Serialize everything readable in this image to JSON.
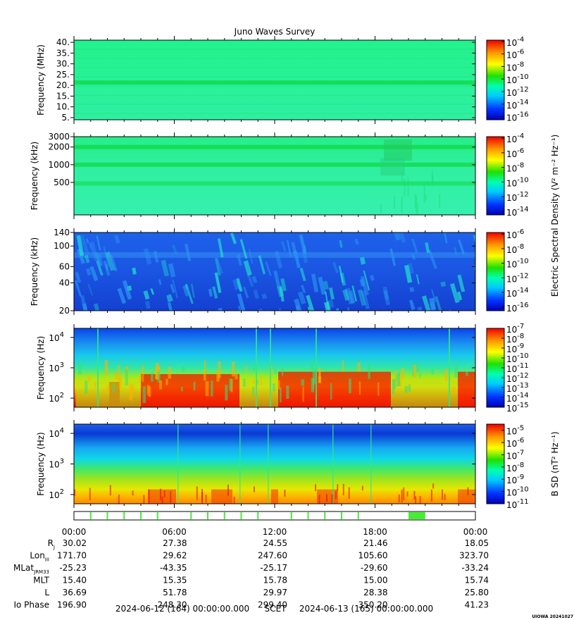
{
  "title": "Juno Waves Survey",
  "footer_note": "UIOWA 20241027",
  "chart_data": [
    {
      "type": "heatmap",
      "panel": "HFR high band",
      "ylabel": "Frequency (MHz)",
      "yscale": "linear",
      "ylim": [
        4,
        41
      ],
      "yticks": [
        {
          "v": 5,
          "label": "5."
        },
        {
          "v": 10,
          "label": "10."
        },
        {
          "v": 15,
          "label": "15."
        },
        {
          "v": 20,
          "label": "20."
        },
        {
          "v": 25,
          "label": "25."
        },
        {
          "v": 30,
          "label": "30."
        },
        {
          "v": 35,
          "label": "35."
        },
        {
          "v": 40,
          "label": "40."
        }
      ],
      "colorbar": {
        "min_exp": -16.5,
        "max_exp": -3.8,
        "labels": [
          {
            "exp": -4,
            "text": "-4"
          },
          {
            "exp": -6,
            "text": "-6"
          },
          {
            "exp": -8,
            "text": "-8"
          },
          {
            "exp": -10,
            "text": "-10"
          },
          {
            "exp": -12,
            "text": "-12"
          },
          {
            "exp": -14,
            "text": "-14"
          },
          {
            "exp": -16,
            "text": "-16"
          }
        ]
      },
      "features": [
        {
          "kind": "band",
          "y": 21.3,
          "width": 1.3,
          "intensity": 0.45
        }
      ]
    },
    {
      "type": "heatmap",
      "panel": "HFR low band",
      "ylabel": "Frequency (kHz)",
      "yscale": "log",
      "ylim": [
        140,
        3000
      ],
      "yticks": [
        {
          "v": 500,
          "label": "500"
        },
        {
          "v": 1000,
          "label": "1000"
        },
        {
          "v": 2000,
          "label": "2000"
        },
        {
          "v": 3000,
          "label": "3000"
        }
      ],
      "colorbar": {
        "min_exp": -14.5,
        "max_exp": -3.8,
        "labels": [
          {
            "exp": -4,
            "text": "-4"
          },
          {
            "exp": -6,
            "text": "-6"
          },
          {
            "exp": -8,
            "text": "-8"
          },
          {
            "exp": -10,
            "text": "-10"
          },
          {
            "exp": -12,
            "text": "-12"
          },
          {
            "exp": -14,
            "text": "-14"
          }
        ]
      },
      "features": [
        {
          "kind": "band",
          "y": 2000,
          "intensity": 0.45
        },
        {
          "kind": "band",
          "y": 1000,
          "intensity": 0.4
        },
        {
          "kind": "band",
          "y": 480,
          "intensity": 0.25
        }
      ]
    },
    {
      "type": "heatmap",
      "panel": "LFR high band",
      "ylabel": "Frequency (kHz)",
      "yscale": "log",
      "ylim": [
        20,
        140
      ],
      "yticks": [
        {
          "v": 20,
          "label": "20"
        },
        {
          "v": 40,
          "label": "40"
        },
        {
          "v": 60,
          "label": "60"
        },
        {
          "v": 100,
          "label": "100"
        },
        {
          "v": 140,
          "label": "140"
        }
      ],
      "colorbar": {
        "min_exp": -16.5,
        "max_exp": -5.8,
        "labels": [
          {
            "exp": -6,
            "text": "-6"
          },
          {
            "exp": -8,
            "text": "-8"
          },
          {
            "exp": -10,
            "text": "-10"
          },
          {
            "exp": -12,
            "text": "-12"
          },
          {
            "exp": -14,
            "text": "-14"
          },
          {
            "exp": -16,
            "text": "-16"
          }
        ]
      }
    },
    {
      "type": "heatmap",
      "panel": "LFR low band (electric)",
      "ylabel": "Frequency (Hz)",
      "yscale": "log",
      "ylim": [
        50,
        20000
      ],
      "yticks": [
        {
          "v": 100,
          "base": "10",
          "exp": "2"
        },
        {
          "v": 1000,
          "base": "10",
          "exp": "3"
        },
        {
          "v": 10000,
          "base": "10",
          "exp": "4"
        }
      ],
      "colorbar": {
        "min_exp": -15,
        "max_exp": -7,
        "labels": [
          {
            "exp": -7,
            "text": "-7"
          },
          {
            "exp": -8,
            "text": "-8"
          },
          {
            "exp": -9,
            "text": "-9"
          },
          {
            "exp": -10,
            "text": "-10"
          },
          {
            "exp": -11,
            "text": "-11"
          },
          {
            "exp": -12,
            "text": "-12"
          },
          {
            "exp": -13,
            "text": "-13"
          },
          {
            "exp": -14,
            "text": "-14"
          },
          {
            "exp": -15,
            "text": "-15"
          }
        ]
      }
    },
    {
      "type": "heatmap",
      "panel": "LFR low band (magnetic)",
      "ylabel": "Frequency (Hz)",
      "yscale": "log",
      "ylim": [
        50,
        20000
      ],
      "yticks": [
        {
          "v": 100,
          "base": "10",
          "exp": "2"
        },
        {
          "v": 1000,
          "base": "10",
          "exp": "3"
        },
        {
          "v": 10000,
          "base": "10",
          "exp": "4"
        }
      ],
      "colorbar": {
        "min_exp": -11,
        "max_exp": -4.5,
        "labels": [
          {
            "exp": -5,
            "text": "-5"
          },
          {
            "exp": -6,
            "text": "-6"
          },
          {
            "exp": -7,
            "text": "-7"
          },
          {
            "exp": -8,
            "text": "-8"
          },
          {
            "exp": -9,
            "text": "-9"
          },
          {
            "exp": -10,
            "text": "-10"
          },
          {
            "exp": -11,
            "text": "-11"
          }
        ]
      },
      "colorbar_label": "B SD (nT² Hz⁻¹)"
    }
  ],
  "shared_colorbar_label": "Electric Spectral Density (V² m⁻² Hz⁻¹)",
  "time_axis": {
    "ticks": [
      "00:00",
      "06:00",
      "12:00",
      "18:00",
      "00:00"
    ],
    "hours": [
      0,
      6,
      12,
      18,
      24
    ]
  },
  "mode_bar": {
    "marks_hours": [
      1.0,
      2.0,
      3.0,
      4.0,
      5.0,
      7.0,
      8.0,
      9.0,
      10.0,
      11.0,
      13.0,
      14.0,
      15.0,
      16.0,
      17.0
    ],
    "highlight_hours": [
      20.0,
      21.0
    ]
  },
  "ephemeris": [
    {
      "label": "R",
      "sub": "J",
      "values": [
        "30.02",
        "27.38",
        "24.55",
        "21.46",
        "18.05"
      ]
    },
    {
      "label": "Lon",
      "sub": "III",
      "values": [
        "171.70",
        "29.62",
        "247.60",
        "105.60",
        "323.70"
      ]
    },
    {
      "label": "MLat",
      "sub": "JRM33",
      "values": [
        "-25.23",
        "-43.35",
        "-25.17",
        "-29.60",
        "-33.24"
      ]
    },
    {
      "label": "MLT",
      "sub": "",
      "values": [
        "15.40",
        "15.35",
        "15.78",
        "15.00",
        "15.74"
      ]
    },
    {
      "label": "L",
      "sub": "",
      "values": [
        "36.69",
        "51.78",
        "29.97",
        "28.38",
        "25.80"
      ]
    },
    {
      "label": "Io Phase",
      "sub": "",
      "values": [
        "196.90",
        "248.30",
        "299.40",
        "350.20",
        "41.23"
      ]
    }
  ],
  "scet_line": {
    "start": "2024-06-12 (164) 00:00:00.000",
    "mid": "SCET",
    "end": "2024-06-13 (165) 00:00:00.000"
  }
}
